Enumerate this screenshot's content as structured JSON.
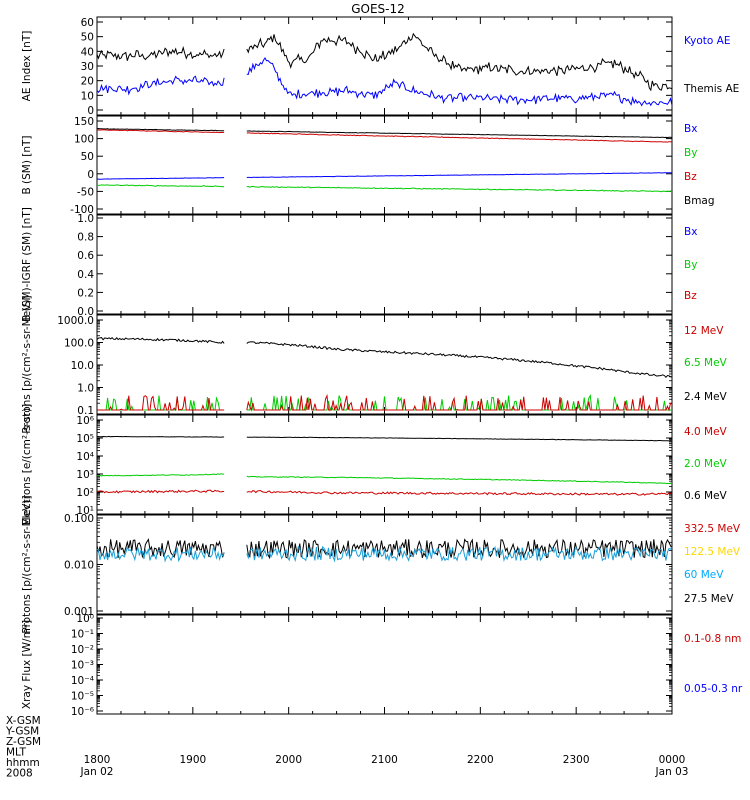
{
  "chart_data": {
    "type": "line",
    "title": "GOES-12",
    "x_axis": {
      "range_hours": [
        18.0,
        24.0
      ],
      "tick_labels": [
        "1800",
        "1900",
        "2000",
        "2100",
        "2200",
        "2300",
        "0000"
      ],
      "date_labels": [
        "Jan 02",
        "",
        "",
        "",
        "",
        "",
        "Jan 03"
      ],
      "row_labels": [
        "X-GSM",
        "Y-GSM",
        "Z-GSM",
        "MLT",
        "hhmm",
        "2008"
      ]
    },
    "data_gap_hours": [
      19.33,
      19.55
    ],
    "panels": [
      {
        "ylabel": "AE Index [nT]",
        "scale": "linear",
        "ylim": [
          0,
          60
        ],
        "yticks": [
          "0",
          "10",
          "20",
          "30",
          "40",
          "50",
          "60"
        ],
        "legend": [
          {
            "name": "Kyoto AE",
            "color": "#0000ff"
          },
          {
            "name": "Themis AE",
            "color": "#000000"
          }
        ],
        "series": [
          {
            "name": "Themis AE",
            "color": "#000000",
            "noise": 3,
            "x": [
              18.0,
              18.5,
              18.8,
              19.2,
              19.5,
              19.75,
              19.85,
              20.0,
              20.2,
              20.35,
              20.6,
              20.9,
              21.15,
              21.3,
              21.5,
              21.8,
              22.1,
              22.5,
              22.8,
              23.0,
              23.4,
              23.6,
              23.8,
              24.0
            ],
            "y": [
              37,
              37,
              40,
              37,
              40,
              45,
              50,
              33,
              34,
              48,
              47,
              34,
              42,
              52,
              38,
              27,
              29,
              26,
              27,
              28,
              32,
              25,
              17,
              17
            ]
          },
          {
            "name": "Kyoto AE",
            "color": "#0000ff",
            "noise": 2.5,
            "x": [
              18.0,
              18.3,
              18.6,
              18.8,
              19.0,
              19.2,
              19.5,
              19.75,
              19.85,
              20.0,
              20.3,
              20.6,
              20.9,
              21.1,
              21.3,
              21.6,
              22.0,
              22.5,
              22.8,
              23.0,
              23.4,
              23.6,
              23.8,
              24.0
            ],
            "y": [
              15,
              14,
              18,
              20,
              20,
              18,
              22,
              35,
              28,
              10,
              12,
              13,
              10,
              18,
              13,
              8,
              8,
              7,
              8,
              8,
              10,
              6,
              5,
              5
            ]
          }
        ]
      },
      {
        "ylabel": "B (SM) [nT]",
        "scale": "linear",
        "ylim": [
          -100,
          150
        ],
        "yticks": [
          "-100",
          "-50",
          "0",
          "50",
          "100",
          "150"
        ],
        "legend": [
          {
            "name": "Bx",
            "color": "#0000ff"
          },
          {
            "name": "By",
            "color": "#00cc00"
          },
          {
            "name": "Bz",
            "color": "#cc0000"
          },
          {
            "name": "Bmag",
            "color": "#000000"
          }
        ],
        "series": [
          {
            "name": "Bmag",
            "color": "#000000",
            "noise": 0.5,
            "x": [
              18.0,
              24.0
            ],
            "y": [
              128,
              103
            ]
          },
          {
            "name": "Bz",
            "color": "#cc0000",
            "noise": 0.8,
            "x": [
              18.0,
              24.0
            ],
            "y": [
              125,
              90
            ]
          },
          {
            "name": "Bx",
            "color": "#0000ff",
            "noise": 0.4,
            "x": [
              18.0,
              24.0
            ],
            "y": [
              -15,
              3
            ]
          },
          {
            "name": "By",
            "color": "#00cc00",
            "noise": 1.0,
            "x": [
              18.0,
              24.0
            ],
            "y": [
              -32,
              -50
            ]
          }
        ]
      },
      {
        "ylabel": "B (SM)-IGRF (SM) [nT]",
        "scale": "linear",
        "ylim": [
          0,
          1
        ],
        "yticks": [
          "0.0",
          "0.2",
          "0.4",
          "0.6",
          "0.8",
          "1.0"
        ],
        "legend": [
          {
            "name": "Bx",
            "color": "#0000ff"
          },
          {
            "name": "By",
            "color": "#00cc00"
          },
          {
            "name": "Bz",
            "color": "#cc0000"
          }
        ],
        "series": []
      },
      {
        "ylabel": "Protons [p/(cm²-s-sr-MeV)]",
        "scale": "log",
        "ylim": [
          0.1,
          1000
        ],
        "yticks": [
          "0.1",
          "1.0",
          "10.0",
          "100.0",
          "1000.0"
        ],
        "legend": [
          {
            "name": "12 MeV",
            "color": "#cc0000"
          },
          {
            "name": "6.5 MeV",
            "color": "#00cc00"
          },
          {
            "name": "2.4 MeV",
            "color": "#000000"
          }
        ],
        "series": [
          {
            "name": "2.4 MeV",
            "color": "#000000",
            "noise": 0.05,
            "x": [
              18.0,
              18.5,
              19.0,
              19.3,
              19.6,
              20.0,
              20.5,
              21.0,
              21.5,
              22.0,
              22.5,
              23.0,
              23.5,
              23.8,
              24.0
            ],
            "y": [
              150,
              140,
              120,
              100,
              100,
              80,
              50,
              38,
              30,
              22,
              15,
              9,
              5,
              3.5,
              3
            ]
          },
          {
            "name": "6.5 MeV",
            "color": "#00cc00",
            "spiky": true,
            "x": [
              18.0,
              24.0
            ],
            "y": [
              0.1,
              0.1
            ]
          },
          {
            "name": "12 MeV",
            "color": "#cc0000",
            "spiky": true,
            "x": [
              18.0,
              24.0
            ],
            "y": [
              0.1,
              0.1
            ]
          }
        ]
      },
      {
        "ylabel": "Electrons [e/(cm²-s-sr)]",
        "scale": "log",
        "ylim": [
          10,
          1000000
        ],
        "yticks": [
          "10¹",
          "10²",
          "10³",
          "10⁴",
          "10⁵",
          "10⁶"
        ],
        "legend": [
          {
            "name": "4.0 MeV",
            "color": "#cc0000"
          },
          {
            "name": "2.0 MeV",
            "color": "#00cc00"
          },
          {
            "name": "0.6 MeV",
            "color": "#000000"
          }
        ],
        "series": [
          {
            "name": "0.6 MeV",
            "color": "#000000",
            "noise": 0.01,
            "x": [
              18.0,
              19.0,
              19.5,
              20.5,
              21.5,
              22.5,
              23.5,
              24.0
            ],
            "y": [
              120000,
              115000,
              112000,
              105000,
              95000,
              85000,
              75000,
              70000
            ]
          },
          {
            "name": "2.0 MeV",
            "color": "#00cc00",
            "noise": 0.02,
            "x": [
              18.0,
              19.0,
              19.3,
              19.6,
              20.5,
              21.5,
              22.5,
              23.5,
              24.0
            ],
            "y": [
              800,
              900,
              1000,
              700,
              650,
              550,
              450,
              350,
              300
            ]
          },
          {
            "name": "4.0 MeV",
            "color": "#cc0000",
            "noise": 0.06,
            "x": [
              18.0,
              19.0,
              19.5,
              20.5,
              21.5,
              22.5,
              23.5,
              24.0
            ],
            "y": [
              100,
              110,
              110,
              90,
              85,
              80,
              75,
              80
            ]
          }
        ]
      },
      {
        "ylabel": "Protons [p/(cm²-s-sr-MeV)]",
        "scale": "log",
        "ylim": [
          0.001,
          0.1
        ],
        "yticks": [
          "0.001",
          "0.010",
          "0.100"
        ],
        "legend": [
          {
            "name": "332.5 MeV",
            "color": "#cc0000"
          },
          {
            "name": "122.5 MeV",
            "color": "#ffd700"
          },
          {
            "name": "60 MeV",
            "color": "#00aaff"
          },
          {
            "name": "27.5 MeV",
            "color": "#000000"
          }
        ],
        "series": [
          {
            "name": "27.5 MeV",
            "color": "#000000",
            "noise": 0.2,
            "x": [
              18.0,
              24.0
            ],
            "y": [
              0.022,
              0.022
            ]
          },
          {
            "name": "60 MeV",
            "color": "#1a9fd9",
            "noise": 0.15,
            "x": [
              18.0,
              24.0
            ],
            "y": [
              0.017,
              0.017
            ]
          }
        ]
      },
      {
        "ylabel": "Xray Flux [W/m²]",
        "scale": "log",
        "ylim": [
          1e-06,
          1
        ],
        "yticks": [
          "10⁻⁶",
          "10⁻⁵",
          "10⁻⁴",
          "10⁻³",
          "10⁻²",
          "10⁻¹",
          "10⁰"
        ],
        "legend": [
          {
            "name": "0.1-0.8 nm",
            "color": "#cc0000"
          },
          {
            "name": "0.05-0.3 nr",
            "color": "#0000ff"
          }
        ],
        "series": []
      }
    ]
  }
}
